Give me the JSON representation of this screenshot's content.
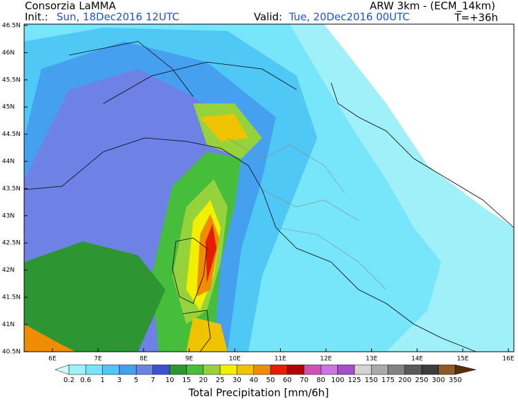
{
  "header": {
    "title": "Consorzia LaMMA",
    "model": "ARW 3km - (ECM_14km)",
    "init_label": "Init.:",
    "init": "Sun, 18Dec2016 12UTC",
    "valid_label": "Valid:",
    "valid": "Tue, 20Dec2016 00UTC",
    "step": "T=+36h"
  },
  "map": {
    "lat_labels": [
      "46.5N",
      "46N",
      "45.5N",
      "45N",
      "44.5N",
      "44N",
      "43.5N",
      "43N",
      "42.5N",
      "42N",
      "41.5N",
      "41N",
      "40.5N"
    ],
    "lon_labels": [
      "6E",
      "7E",
      "8E",
      "9E",
      "10E",
      "11E",
      "12E",
      "13E",
      "14E",
      "15E",
      "16E"
    ]
  },
  "colorbar": {
    "levels": [
      "0.2",
      "0.6",
      "1",
      "3",
      "5",
      "7",
      "10",
      "15",
      "20",
      "25",
      "30",
      "40",
      "50",
      "60",
      "70",
      "80",
      "100",
      "125",
      "150",
      "175",
      "200",
      "250",
      "300",
      "350"
    ],
    "colors": [
      "#d2faff",
      "#a0f0fa",
      "#78e6fa",
      "#50c8f5",
      "#46a0f0",
      "#6e82e6",
      "#3c50d2",
      "#2d9632",
      "#46be3c",
      "#96d23c",
      "#f0f000",
      "#f0c300",
      "#f08c00",
      "#e61e00",
      "#b40000",
      "#d250b4",
      "#c878dc",
      "#a050c8",
      "#d2d2d2",
      "#aaaaaa",
      "#828282",
      "#5a5a5a",
      "#3c3c3c",
      "#8c5a28",
      "#5a2d0a"
    ],
    "title": "Total Precipitation [mm/6h]"
  }
}
